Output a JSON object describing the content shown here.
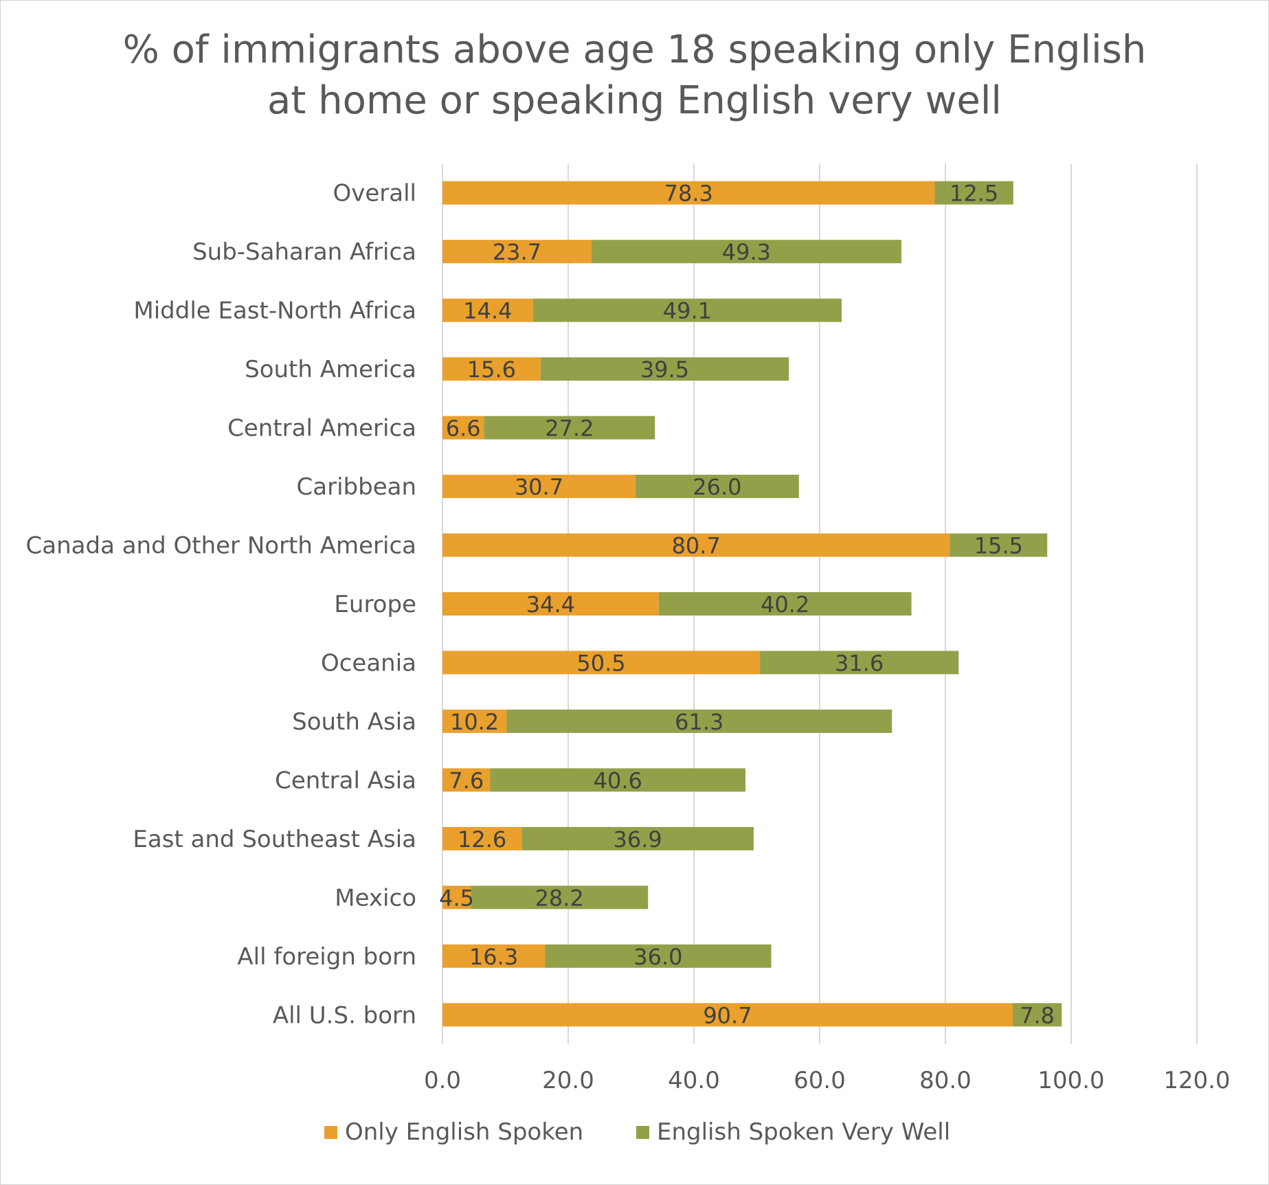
{
  "chart_data": {
    "type": "bar",
    "orientation": "horizontal",
    "stacked": true,
    "title_lines": [
      "% of immigrants above age 18 speaking only English",
      "at home or speaking English very well"
    ],
    "categories": [
      "Overall",
      "Sub-Saharan Africa",
      "Middle East-North Africa",
      "South America",
      "Central America",
      "Caribbean",
      "Canada and Other North America",
      "Europe",
      "Oceania",
      "South Asia",
      "Central Asia",
      "East and Southeast Asia",
      "Mexico",
      "All foreign born",
      "All U.S. born"
    ],
    "series": [
      {
        "name": "Only English Spoken",
        "color": "#E9A02C",
        "values": [
          78.3,
          23.7,
          14.4,
          15.6,
          6.6,
          30.7,
          80.7,
          34.4,
          50.5,
          10.2,
          7.6,
          12.6,
          4.5,
          16.3,
          90.7
        ],
        "labels": [
          "78.3",
          "23.7",
          "14.4",
          "15.6",
          "6.6",
          "30.7",
          "80.7",
          "34.4",
          "50.5",
          "10.2",
          "7.6",
          "12.6",
          "4.5",
          "16.3",
          "90.7"
        ]
      },
      {
        "name": "English Spoken Very Well",
        "color": "#93A049",
        "values": [
          12.5,
          49.3,
          49.1,
          39.5,
          27.2,
          26.0,
          15.5,
          40.2,
          31.6,
          61.3,
          40.6,
          36.9,
          28.2,
          36.0,
          7.8
        ],
        "labels": [
          "12.5",
          "49.3",
          "49.1",
          "39.5",
          "27.2",
          "26.0",
          "15.5",
          "40.2",
          "31.6",
          "61.3",
          "40.6",
          "36.9",
          "28.2",
          "36.0",
          "7.8"
        ]
      }
    ],
    "xlim": [
      0,
      120
    ],
    "xticks": [
      0,
      20,
      40,
      60,
      80,
      100,
      120
    ],
    "xtick_labels": [
      "0.0",
      "20.0",
      "40.0",
      "60.0",
      "80.0",
      "100.0",
      "120.0"
    ],
    "grid": true,
    "gridline_color": "#D9D9D9",
    "legend_position": "bottom"
  }
}
